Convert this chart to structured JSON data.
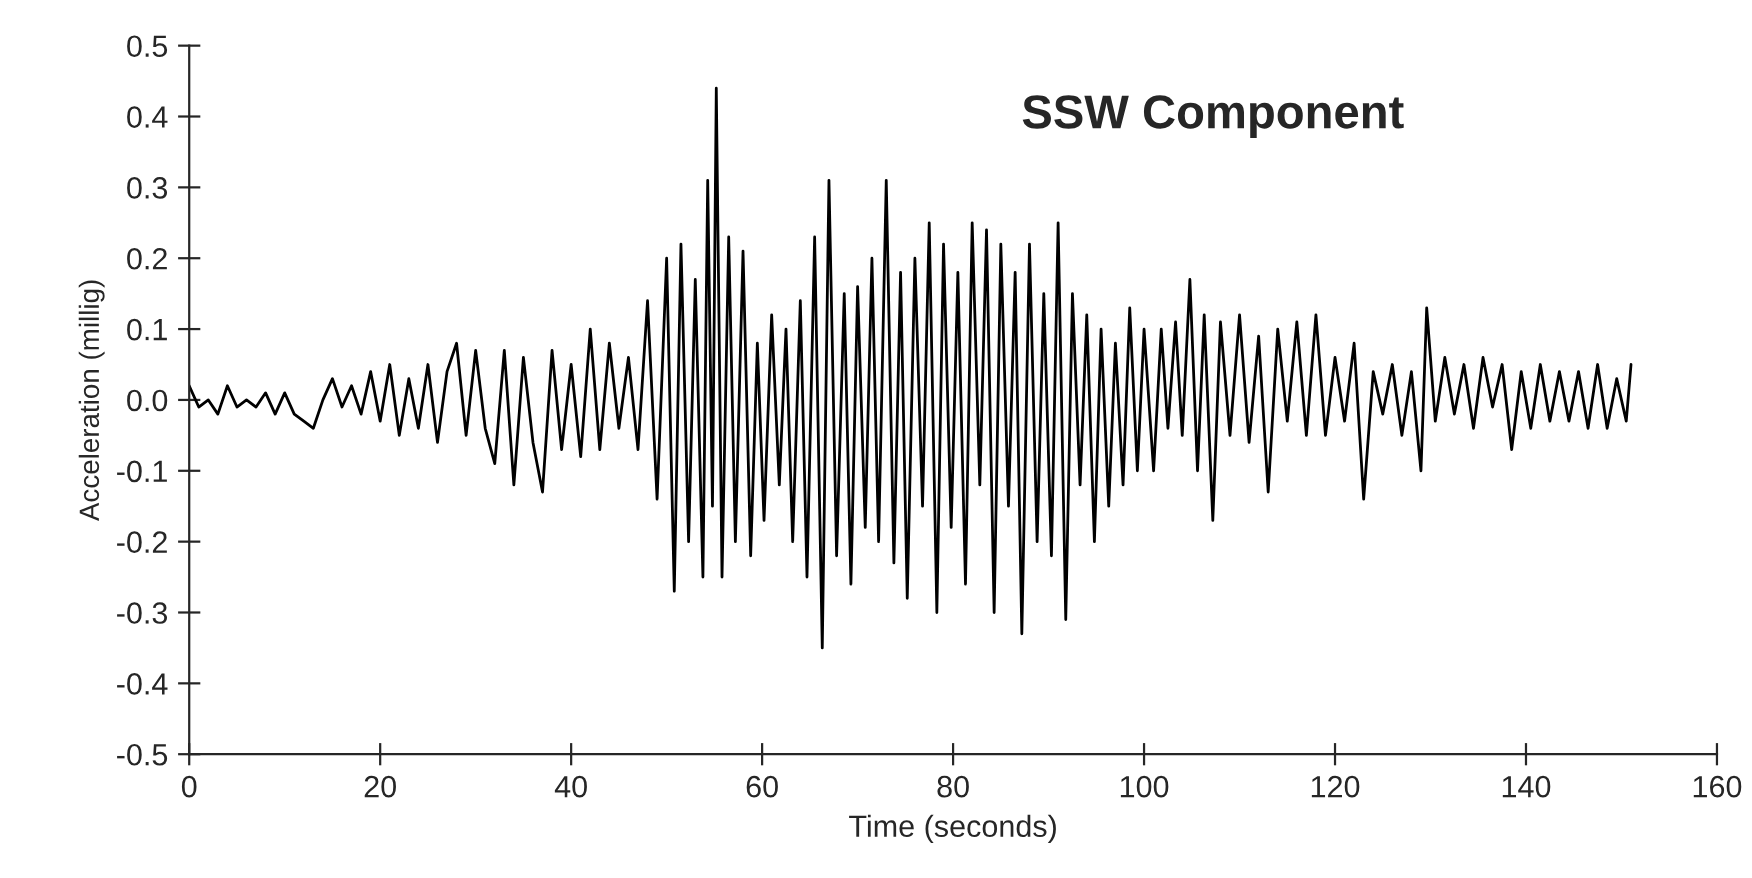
{
  "chart_data": {
    "type": "line",
    "title": "SSW Component",
    "xlabel": "Time (seconds)",
    "ylabel": "Acceleration (millig)",
    "xlim": [
      0,
      160
    ],
    "xticks": [
      0,
      20,
      40,
      60,
      80,
      100,
      120,
      140,
      160
    ],
    "ylim": [
      -0.5,
      0.5
    ],
    "yticks": [
      -0.5,
      -0.4,
      -0.3,
      -0.2,
      -0.1,
      {
        "value": 0,
        "label": "0.0"
      },
      0.1,
      0.2,
      0.3,
      0.4,
      0.5
    ],
    "grid": false,
    "legend": false,
    "marker": "none",
    "line_style": "solid",
    "x": [
      0,
      1,
      2,
      3,
      4,
      5,
      6,
      7,
      8,
      9,
      10,
      11,
      12,
      13,
      14,
      15,
      16,
      17,
      18,
      19,
      20,
      21,
      22,
      23,
      24,
      25,
      26,
      27,
      28,
      29,
      30,
      31,
      32,
      33,
      34,
      35,
      36,
      37,
      38,
      39,
      40,
      41,
      42,
      43,
      44,
      45,
      46,
      47,
      48,
      49,
      50,
      50.8,
      51.5,
      52.3,
      53,
      53.8,
      54.3,
      54.8,
      55.2,
      55.8,
      56.5,
      57.2,
      58,
      58.8,
      59.5,
      60.2,
      61,
      61.8,
      62.5,
      63.2,
      64,
      64.7,
      65.5,
      66.3,
      67,
      67.8,
      68.6,
      69.3,
      70,
      70.8,
      71.5,
      72.2,
      73,
      73.8,
      74.5,
      75.2,
      76,
      76.8,
      77.5,
      78.3,
      79,
      79.8,
      80.5,
      81.3,
      82,
      82.8,
      83.5,
      84.3,
      85,
      85.8,
      86.5,
      87.2,
      88,
      88.8,
      89.5,
      90.3,
      91,
      91.8,
      92.5,
      93.3,
      94,
      94.8,
      95.5,
      96.3,
      97,
      97.8,
      98.5,
      99.3,
      100,
      101,
      101.8,
      102.5,
      103.3,
      104,
      104.8,
      105.6,
      106.3,
      107.2,
      108,
      109,
      110,
      111,
      112,
      113,
      114,
      115,
      116,
      117,
      118,
      119,
      120,
      121,
      122,
      123,
      124,
      125,
      126,
      127,
      128,
      129,
      129.6,
      130.5,
      131.5,
      132.5,
      133.5,
      134.5,
      135.5,
      136.5,
      137.5,
      138.5,
      139.5,
      140.5,
      141.5,
      142.5,
      143.5,
      144.5,
      145.5,
      146.5,
      147.5,
      148.5,
      149.5,
      150.5,
      151
    ],
    "series": [
      {
        "color": "#000000",
        "values": [
          0.02,
          -0.01,
          0.0,
          -0.02,
          0.02,
          -0.01,
          0.0,
          -0.01,
          0.01,
          -0.02,
          0.01,
          -0.02,
          -0.03,
          -0.04,
          0.0,
          0.03,
          -0.01,
          0.02,
          -0.02,
          0.04,
          -0.03,
          0.05,
          -0.05,
          0.03,
          -0.04,
          0.05,
          -0.06,
          0.04,
          0.08,
          -0.05,
          0.07,
          -0.04,
          -0.09,
          0.07,
          -0.12,
          0.06,
          -0.06,
          -0.13,
          0.07,
          -0.07,
          0.05,
          -0.08,
          0.1,
          -0.07,
          0.08,
          -0.04,
          0.06,
          -0.07,
          0.14,
          -0.14,
          0.2,
          -0.27,
          0.22,
          -0.2,
          0.17,
          -0.25,
          0.31,
          -0.15,
          0.44,
          -0.25,
          0.23,
          -0.2,
          0.21,
          -0.22,
          0.08,
          -0.17,
          0.12,
          -0.12,
          0.1,
          -0.2,
          0.14,
          -0.25,
          0.23,
          -0.35,
          0.31,
          -0.22,
          0.15,
          -0.26,
          0.16,
          -0.18,
          0.2,
          -0.2,
          0.31,
          -0.23,
          0.18,
          -0.28,
          0.2,
          -0.15,
          0.25,
          -0.3,
          0.22,
          -0.18,
          0.18,
          -0.26,
          0.25,
          -0.12,
          0.24,
          -0.3,
          0.22,
          -0.15,
          0.18,
          -0.33,
          0.22,
          -0.2,
          0.15,
          -0.22,
          0.25,
          -0.31,
          0.15,
          -0.12,
          0.12,
          -0.2,
          0.1,
          -0.15,
          0.08,
          -0.12,
          0.13,
          -0.1,
          0.1,
          -0.1,
          0.1,
          -0.04,
          0.11,
          -0.05,
          0.17,
          -0.1,
          0.12,
          -0.17,
          0.11,
          -0.05,
          0.12,
          -0.06,
          0.09,
          -0.13,
          0.1,
          -0.03,
          0.11,
          -0.05,
          0.12,
          -0.05,
          0.06,
          -0.03,
          0.08,
          -0.14,
          0.04,
          -0.02,
          0.05,
          -0.05,
          0.04,
          -0.1,
          0.13,
          -0.03,
          0.06,
          -0.02,
          0.05,
          -0.04,
          0.06,
          -0.01,
          0.05,
          -0.07,
          0.04,
          -0.04,
          0.05,
          -0.03,
          0.04,
          -0.03,
          0.04,
          -0.04,
          0.05,
          -0.04,
          0.03,
          -0.03,
          0.05
        ]
      }
    ]
  }
}
